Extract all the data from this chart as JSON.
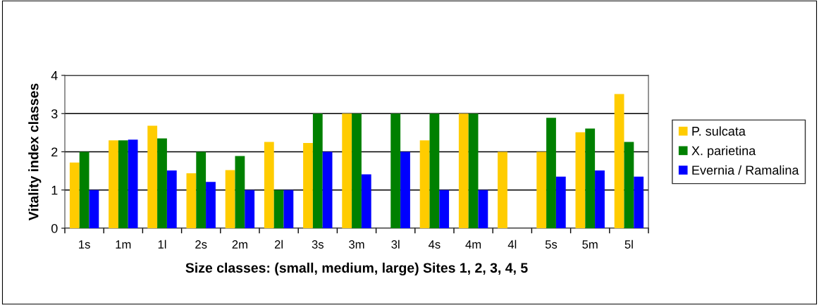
{
  "chart_data": {
    "type": "bar",
    "xlabel": "Size classes: (small, medium, large) Sites 1, 2, 3, 4, 5",
    "ylabel": "Vitality index classes",
    "categories": [
      "1s",
      "1m",
      "1l",
      "2s",
      "2m",
      "2l",
      "3s",
      "3m",
      "3l",
      "4s",
      "4m",
      "4l",
      "5s",
      "5m",
      "5l"
    ],
    "series": [
      {
        "name": "P. sulcata",
        "color": "#ffcc00",
        "values": [
          1.72,
          2.3,
          2.68,
          1.44,
          1.52,
          2.26,
          2.23,
          3.0,
          null,
          2.3,
          3.0,
          2.0,
          2.0,
          2.51,
          3.51
        ]
      },
      {
        "name": "X. parietina",
        "color": "#008000",
        "values": [
          2.0,
          2.3,
          2.35,
          2.0,
          1.89,
          1.0,
          3.0,
          3.0,
          3.0,
          3.0,
          3.0,
          null,
          2.89,
          2.61,
          2.26
        ]
      },
      {
        "name": "Evernia / Ramalina",
        "color": "#0000ff",
        "values": [
          1.0,
          2.32,
          1.51,
          1.21,
          1.0,
          1.0,
          2.0,
          1.41,
          2.0,
          1.0,
          1.0,
          null,
          1.35,
          1.51,
          1.35
        ]
      }
    ],
    "ylim": [
      0,
      4
    ],
    "yticks": [
      0,
      1,
      2,
      3,
      4
    ],
    "grid": "y",
    "legend": "right"
  }
}
